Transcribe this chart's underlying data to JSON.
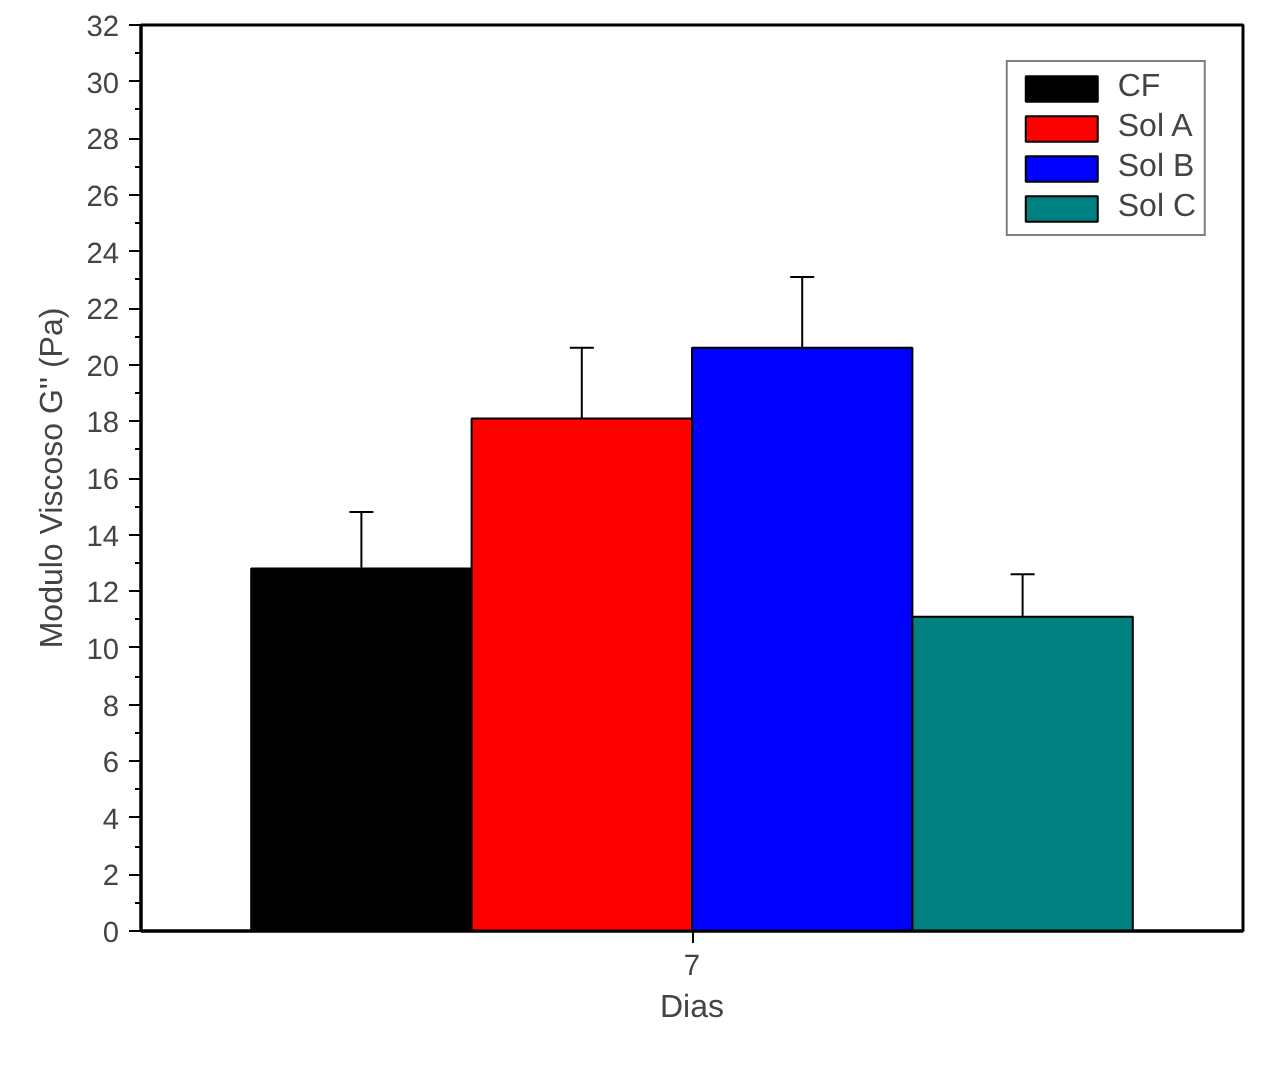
{
  "chart_data": {
    "type": "bar",
    "xlabel": "Dias",
    "ylabel": "Modulo Viscoso G'' (Pa)",
    "categories": [
      "7"
    ],
    "series": [
      {
        "name": "CF",
        "color": "#000000",
        "values": [
          12.8
        ],
        "errors": [
          2.0
        ]
      },
      {
        "name": "Sol A",
        "color": "#ff0000",
        "values": [
          18.1
        ],
        "errors": [
          2.5
        ]
      },
      {
        "name": "Sol B",
        "color": "#0000ff",
        "values": [
          20.6
        ],
        "errors": [
          2.5
        ]
      },
      {
        "name": "Sol C",
        "color": "#008080",
        "values": [
          11.1
        ],
        "errors": [
          1.5
        ]
      }
    ],
    "ylim": [
      0,
      32
    ],
    "yticks": [
      0,
      2,
      4,
      6,
      8,
      10,
      12,
      14,
      16,
      18,
      20,
      22,
      24,
      26,
      28,
      30,
      32
    ],
    "grid": false,
    "legend": "top right"
  }
}
